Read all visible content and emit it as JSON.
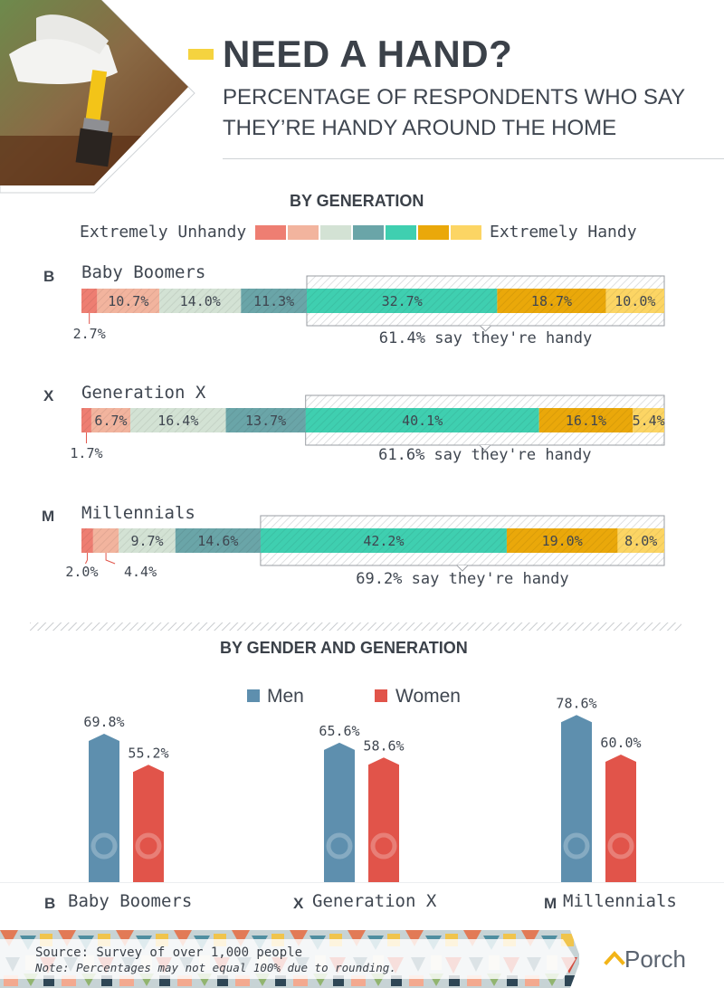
{
  "header": {
    "title": "NEED A HAND?",
    "subtitle_line1": "PERCENTAGE OF RESPONDENTS WHO SAY",
    "subtitle_line2": "THEY’RE HANDY AROUND THE HOME"
  },
  "section1": {
    "heading": "BY GENERATION",
    "legend_left": "Extremely Unhandy",
    "legend_right": "Extremely Handy"
  },
  "section2": {
    "heading": "BY GENDER AND GENERATION",
    "legend_men": "Men",
    "legend_women": "Women"
  },
  "footer": {
    "source": "Source: Survey of over 1,000 people",
    "note": "Note: Percentages may not equal 100% due to rounding.",
    "brand": "Porch"
  },
  "colors": {
    "scale": [
      "#ee7e72",
      "#f2b49e",
      "#d3e2d4",
      "#6aa5a8",
      "#3fcfb0",
      "#eaa80a",
      "#fcd564"
    ],
    "men": "#5e8fae",
    "women": "#e1544a",
    "text": "#3f4650"
  },
  "chart_data": [
    {
      "type": "bar",
      "title": "BY GENERATION",
      "stacked": true,
      "orientation": "horizontal",
      "scale_labels": [
        "Extremely Unhandy",
        "Extremely Handy"
      ],
      "categories": [
        "Baby Boomers",
        "Generation X",
        "Millennials"
      ],
      "category_icons": [
        "B",
        "X",
        "M"
      ],
      "segments": {
        "Baby Boomers": [
          2.7,
          10.7,
          14.0,
          11.3,
          32.7,
          18.7,
          10.0
        ],
        "Generation X": [
          1.7,
          6.7,
          16.4,
          13.7,
          40.1,
          16.1,
          5.4
        ],
        "Millennials": [
          2.0,
          4.4,
          9.7,
          14.6,
          42.2,
          19.0,
          8.0
        ]
      },
      "segment_labels": {
        "Baby Boomers": [
          "2.7%",
          "10.7%",
          "14.0%",
          "11.3%",
          "32.7%",
          "18.7%",
          "10.0%"
        ],
        "Generation X": [
          "1.7%",
          "6.7%",
          "16.4%",
          "13.7%",
          "40.1%",
          "16.1%",
          "5.4%"
        ],
        "Millennials": [
          "2.0%",
          "4.4%",
          "9.7%",
          "14.6%",
          "42.2%",
          "19.0%",
          "8.0%"
        ]
      },
      "handy_callouts": {
        "Baby Boomers": "61.4% say they're handy",
        "Generation X": "61.6% say they're handy",
        "Millennials": "69.2% say they're handy"
      }
    },
    {
      "type": "bar",
      "title": "BY GENDER AND GENERATION",
      "categories": [
        "Baby Boomers",
        "Generation X",
        "Millennials"
      ],
      "category_icons": [
        "B",
        "X",
        "M"
      ],
      "series": [
        {
          "name": "Men",
          "values": [
            69.8,
            65.6,
            78.6
          ],
          "labels": [
            "69.8%",
            "65.6%",
            "78.6%"
          ]
        },
        {
          "name": "Women",
          "values": [
            55.2,
            58.6,
            60.0
          ],
          "labels": [
            "55.2%",
            "58.6%",
            "60.0%"
          ]
        }
      ]
    }
  ]
}
